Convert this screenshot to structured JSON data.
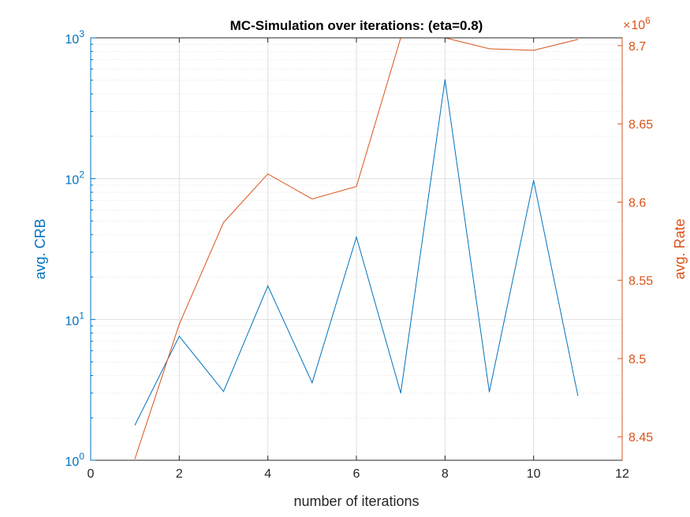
{
  "chart_data": {
    "type": "line",
    "title": "MC-Simulation over iterations: (eta=0.8)",
    "xlabel": "number of iterations",
    "xlim": [
      0,
      12
    ],
    "xticks": [
      0,
      2,
      4,
      6,
      8,
      10,
      12
    ],
    "x": [
      1,
      2,
      3,
      4,
      5,
      6,
      7,
      8,
      9,
      10,
      11
    ],
    "grid": true,
    "left_axis": {
      "label": "avg. CRB",
      "scale": "log",
      "ylim": [
        1,
        1000
      ],
      "ticks": [
        {
          "value": 1,
          "base": "10",
          "exp": "0"
        },
        {
          "value": 10,
          "base": "10",
          "exp": "1"
        },
        {
          "value": 100,
          "base": "10",
          "exp": "2"
        },
        {
          "value": 1000,
          "base": "10",
          "exp": "3"
        }
      ],
      "color": "#0072bd"
    },
    "right_axis": {
      "label": "avg. Rate",
      "scale": "linear",
      "ylim": [
        8.435,
        8.705
      ],
      "ticks": [
        "8.45",
        "8.5",
        "8.55",
        "8.6",
        "8.65",
        "8.7"
      ],
      "multiplier": {
        "times": "×",
        "base": "10",
        "exp": "6"
      },
      "color": "#d95319"
    },
    "series": [
      {
        "axis": "left",
        "color": "#0072bd",
        "values": [
          1.78,
          7.6,
          3.08,
          17.3,
          3.55,
          38.5,
          3.0,
          505,
          3.06,
          97,
          2.88
        ]
      },
      {
        "axis": "right",
        "color": "#d95319",
        "values": [
          8.436,
          8.522,
          8.587,
          8.618,
          8.602,
          8.61,
          8.705,
          8.705,
          8.698,
          8.697,
          8.704
        ]
      }
    ]
  }
}
